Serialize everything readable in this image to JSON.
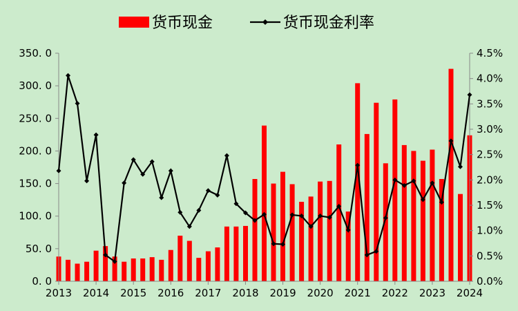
{
  "chart_data": {
    "type": "bar+line",
    "legend": {
      "position": "top-center",
      "entries": [
        {
          "name": "货币现金",
          "kind": "bar",
          "color": "#ff0000"
        },
        {
          "name": "货币现金利率",
          "kind": "line",
          "color": "#000000"
        }
      ]
    },
    "x_axis": {
      "range": [
        2013,
        2024
      ],
      "tick_labels": [
        "2013",
        "2014",
        "2015",
        "2016",
        "2017",
        "2018",
        "2019",
        "2020",
        "2021",
        "2022",
        "2023",
        "2024"
      ]
    },
    "y_left": {
      "range": [
        0,
        350
      ],
      "tick_labels": [
        "0. 0",
        "50. 0",
        "100. 0",
        "150. 0",
        "200. 0",
        "250. 0",
        "300. 0",
        "350. 0"
      ]
    },
    "y_right": {
      "range": [
        0,
        4.5
      ],
      "tick_labels": [
        "0.0%",
        "0.5%",
        "1.0%",
        "1.5%",
        "2.0%",
        "2.5%",
        "3.0%",
        "3.5%",
        "4.0%",
        "4.5%"
      ]
    },
    "grid": false,
    "series": [
      {
        "name": "货币现金",
        "type": "bar",
        "axis": "left",
        "color": "#ff0000",
        "x": [
          2013.0,
          2013.25,
          2013.5,
          2013.75,
          2014.0,
          2014.25,
          2014.5,
          2014.75,
          2015.0,
          2015.25,
          2015.5,
          2015.75,
          2016.0,
          2016.25,
          2016.5,
          2016.75,
          2017.0,
          2017.25,
          2017.5,
          2017.75,
          2018.0,
          2018.25,
          2018.5,
          2018.75,
          2019.0,
          2019.25,
          2019.5,
          2019.75,
          2020.0,
          2020.25,
          2020.5,
          2020.75,
          2021.0,
          2021.25,
          2021.5,
          2021.75,
          2022.0,
          2022.25,
          2022.5,
          2022.75,
          2023.0,
          2023.25,
          2023.5,
          2023.75,
          2024.0
        ],
        "values": [
          38,
          33,
          27,
          30,
          47,
          54,
          38,
          30,
          35,
          35,
          37,
          33,
          48,
          70,
          62,
          36,
          46,
          52,
          84,
          84,
          85,
          157,
          239,
          150,
          168,
          149,
          122,
          130,
          153,
          154,
          210,
          107,
          304,
          226,
          274,
          181,
          279,
          209,
          200,
          185,
          202,
          157,
          326,
          134,
          224
        ]
      },
      {
        "name": "货币现金利率",
        "type": "line",
        "axis": "right",
        "color": "#000000",
        "marker": "diamond",
        "x": [
          2013.0,
          2013.25,
          2013.5,
          2013.75,
          2014.0,
          2014.25,
          2014.5,
          2014.75,
          2015.0,
          2015.25,
          2015.5,
          2015.75,
          2016.0,
          2016.25,
          2016.5,
          2016.75,
          2017.0,
          2017.25,
          2017.5,
          2017.75,
          2018.0,
          2018.25,
          2018.5,
          2018.75,
          2019.0,
          2019.25,
          2019.5,
          2019.75,
          2020.0,
          2020.25,
          2020.5,
          2020.75,
          2021.0,
          2021.25,
          2021.5,
          2021.75,
          2022.0,
          2022.25,
          2022.5,
          2022.75,
          2023.0,
          2023.25,
          2023.5,
          2023.75,
          2024.0
        ],
        "values": [
          2.18,
          4.06,
          3.51,
          1.98,
          2.89,
          0.52,
          0.39,
          1.94,
          2.4,
          2.11,
          2.36,
          1.65,
          2.18,
          1.36,
          1.08,
          1.4,
          1.79,
          1.7,
          2.48,
          1.53,
          1.35,
          1.2,
          1.32,
          0.74,
          0.73,
          1.31,
          1.29,
          1.08,
          1.29,
          1.26,
          1.48,
          1.01,
          2.29,
          0.52,
          0.59,
          1.25,
          2.0,
          1.89,
          1.98,
          1.61,
          1.94,
          1.56,
          2.77,
          2.26,
          3.68
        ]
      }
    ]
  }
}
